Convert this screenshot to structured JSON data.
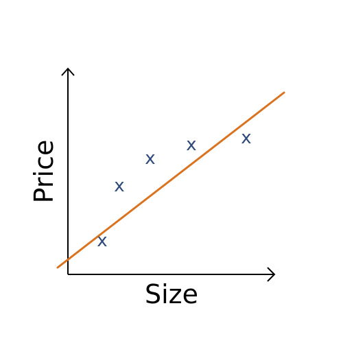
{
  "diagram": {
    "xlabel": "Size",
    "ylabel": "Price",
    "marker_symbol": "x",
    "colors": {
      "axes": "#000000",
      "points": "#2e4a7a",
      "fit_line": "#d9731f"
    },
    "points": [
      {
        "x": 1.0,
        "y": 1.0
      },
      {
        "x": 1.5,
        "y": 2.6
      },
      {
        "x": 2.4,
        "y": 3.4
      },
      {
        "x": 3.6,
        "y": 3.8
      },
      {
        "x": 5.2,
        "y": 4.0
      }
    ],
    "fit_line": {
      "x_start": -0.3,
      "y_start": 0.2,
      "x_end": 6.3,
      "y_end": 5.3
    }
  }
}
